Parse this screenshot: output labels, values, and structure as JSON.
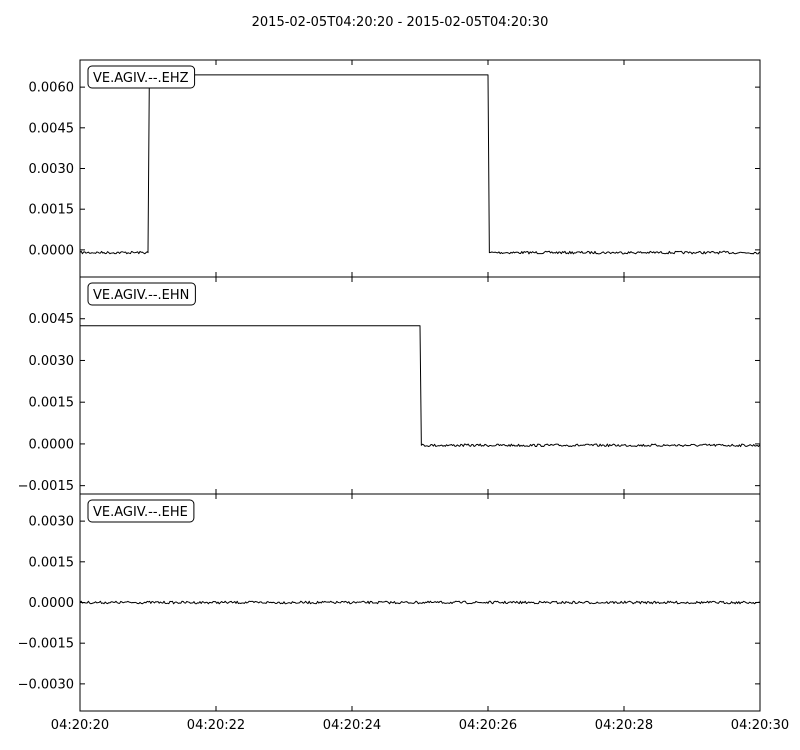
{
  "chart_data": {
    "type": "line",
    "title": "2015-02-05T04:20:20  -  2015-02-05T04:20:30",
    "x_ticks": [
      "04:20:20",
      "04:20:22",
      "04:20:24",
      "04:20:26",
      "04:20:28",
      "04:20:30"
    ],
    "xlim": [
      0,
      10
    ],
    "panels": [
      {
        "label": "VE.AGIV.--.EHZ",
        "ylim": [
          -0.001,
          0.007
        ],
        "y_ticks": [
          "0.0000",
          "0.0015",
          "0.0030",
          "0.0045",
          "0.0060"
        ],
        "y_tick_values": [
          0.0,
          0.0015,
          0.003,
          0.0045,
          0.006
        ],
        "series": [
          {
            "x": [
              0,
              1.0,
              1.02,
              6.0,
              6.02,
              10
            ],
            "y": [
              -0.0001,
              -0.0001,
              0.00645,
              0.00645,
              -0.0001,
              -0.0001
            ]
          }
        ]
      },
      {
        "label": "VE.AGIV.--.EHN",
        "ylim": [
          -0.0018,
          0.006
        ],
        "y_ticks": [
          "−0.0015",
          "0.0000",
          "0.0015",
          "0.0030",
          "0.0045"
        ],
        "y_tick_values": [
          -0.0015,
          0.0,
          0.0015,
          0.003,
          0.0045
        ],
        "series": [
          {
            "x": [
              0,
              5.0,
              5.02,
              10
            ],
            "y": [
              0.00425,
              0.00425,
              -5e-05,
              -5e-05
            ]
          }
        ]
      },
      {
        "label": "VE.AGIV.--.EHE",
        "ylim": [
          -0.004,
          0.004
        ],
        "y_ticks": [
          "−0.0030",
          "−0.0015",
          "0.0000",
          "0.0015",
          "0.0030"
        ],
        "y_tick_values": [
          -0.003,
          -0.0015,
          0.0,
          0.0015,
          0.003
        ],
        "series": [
          {
            "x": [
              0,
              10
            ],
            "y": [
              0.0,
              0.0
            ]
          }
        ]
      }
    ]
  }
}
